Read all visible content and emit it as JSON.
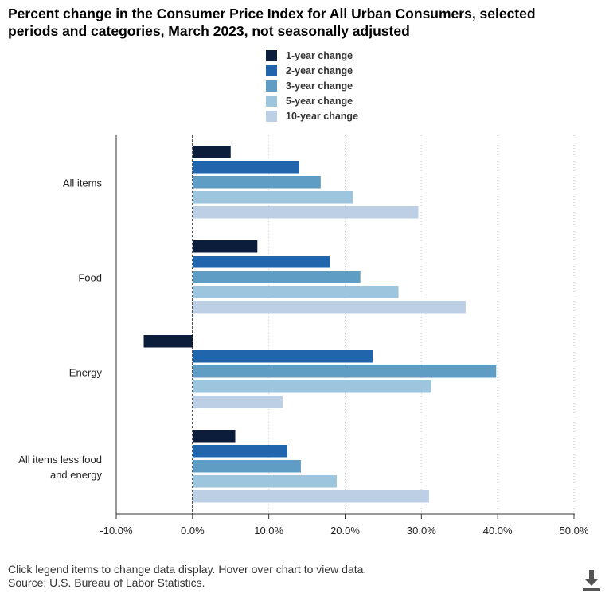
{
  "title_line1": "Percent change in the Consumer Price Index for All Urban Consumers, selected",
  "title_line2": "periods and categories, March 2023, not seasonally adjusted",
  "footer": {
    "note": "Click legend items to change data display. Hover over chart to view data.",
    "source": "Source: U.S. Bureau of Labor Statistics."
  },
  "download_icon": "download-icon",
  "chart_data": {
    "type": "bar",
    "orientation": "horizontal",
    "title": "Percent change in the Consumer Price Index for All Urban Consumers, selected periods and categories, March 2023, not seasonally adjusted",
    "categories": [
      "All items",
      "Food",
      "Energy",
      "All items less food and energy"
    ],
    "category_lines": [
      [
        "All items"
      ],
      [
        "Food"
      ],
      [
        "Energy"
      ],
      [
        "All items less food",
        "and energy"
      ]
    ],
    "series": [
      {
        "name": "1-year change",
        "color": "#0c1d3b",
        "values": [
          5.0,
          8.5,
          -6.4,
          5.6
        ]
      },
      {
        "name": "2-year change",
        "color": "#2166ac",
        "values": [
          14.0,
          18.0,
          23.6,
          12.4
        ]
      },
      {
        "name": "3-year change",
        "color": "#5f9dc5",
        "values": [
          16.8,
          22.0,
          39.8,
          14.2
        ]
      },
      {
        "name": "5-year change",
        "color": "#9dc6de",
        "values": [
          21.0,
          27.0,
          31.3,
          18.9
        ]
      },
      {
        "name": "10-year change",
        "color": "#bccfe4",
        "values": [
          29.6,
          35.8,
          11.8,
          31.0
        ]
      }
    ],
    "xlim": [
      -10,
      50
    ],
    "xticks": [
      -10,
      0,
      10,
      20,
      30,
      40,
      50
    ],
    "tick_labels": [
      "-10.0%",
      "0.0%",
      "10.0%",
      "20.0%",
      "30.0%",
      "40.0%",
      "50.0%"
    ],
    "legend_position": "top-center",
    "grid": "vertical-dotted"
  }
}
